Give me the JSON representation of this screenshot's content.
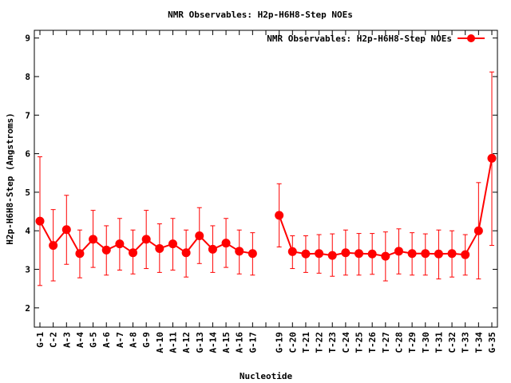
{
  "chart_data": {
    "type": "line",
    "title": "NMR Observables: H2p-H6H8-Step NOEs",
    "xlabel": "Nucleotide",
    "ylabel": "H2p-H6H8-Step (Angstroms)",
    "ylim": [
      1.5,
      9.2
    ],
    "yticks": [
      2,
      3,
      4,
      5,
      6,
      7,
      8,
      9
    ],
    "grid": false,
    "legend_position": "top-right",
    "categories": [
      "G-1",
      "C-2",
      "A-3",
      "A-4",
      "G-5",
      "A-6",
      "A-7",
      "A-8",
      "G-9",
      "A-10",
      "A-11",
      "A-12",
      "G-13",
      "A-14",
      "A-15",
      "A-16",
      "G-17",
      "",
      "G-19",
      "C-20",
      "T-21",
      "T-22",
      "T-23",
      "C-24",
      "T-25",
      "T-26",
      "T-27",
      "C-28",
      "T-29",
      "T-30",
      "T-31",
      "C-32",
      "T-33",
      "T-34",
      "G-35"
    ],
    "series": [
      {
        "name": "NMR Observables: H2p-H6H8-Step NOEs",
        "color": "#ff0000",
        "values": [
          4.25,
          3.62,
          4.03,
          3.41,
          3.78,
          3.5,
          3.66,
          3.43,
          3.78,
          3.54,
          3.66,
          3.43,
          3.87,
          3.52,
          3.68,
          3.47,
          3.41,
          null,
          4.4,
          3.46,
          3.4,
          3.41,
          3.36,
          3.43,
          3.41,
          3.4,
          3.34,
          3.47,
          3.41,
          3.41,
          3.4,
          3.41,
          3.38,
          4.0,
          5.88
        ],
        "err_low": [
          2.58,
          2.7,
          3.13,
          2.78,
          3.05,
          2.85,
          2.98,
          2.88,
          3.02,
          2.92,
          2.98,
          2.8,
          3.15,
          2.92,
          3.05,
          2.88,
          2.85,
          null,
          3.58,
          3.02,
          2.92,
          2.9,
          2.82,
          2.85,
          2.85,
          2.87,
          2.7,
          2.88,
          2.85,
          2.85,
          2.75,
          2.8,
          2.85,
          2.75,
          3.62
        ],
        "err_high": [
          5.92,
          4.55,
          4.92,
          4.02,
          4.53,
          4.13,
          4.32,
          4.02,
          4.53,
          4.18,
          4.32,
          4.02,
          4.6,
          4.13,
          4.32,
          4.02,
          3.95,
          null,
          5.22,
          3.87,
          3.87,
          3.9,
          3.92,
          4.02,
          3.93,
          3.93,
          3.97,
          4.05,
          3.95,
          3.92,
          4.02,
          4.0,
          3.9,
          5.25,
          8.12
        ]
      }
    ]
  }
}
